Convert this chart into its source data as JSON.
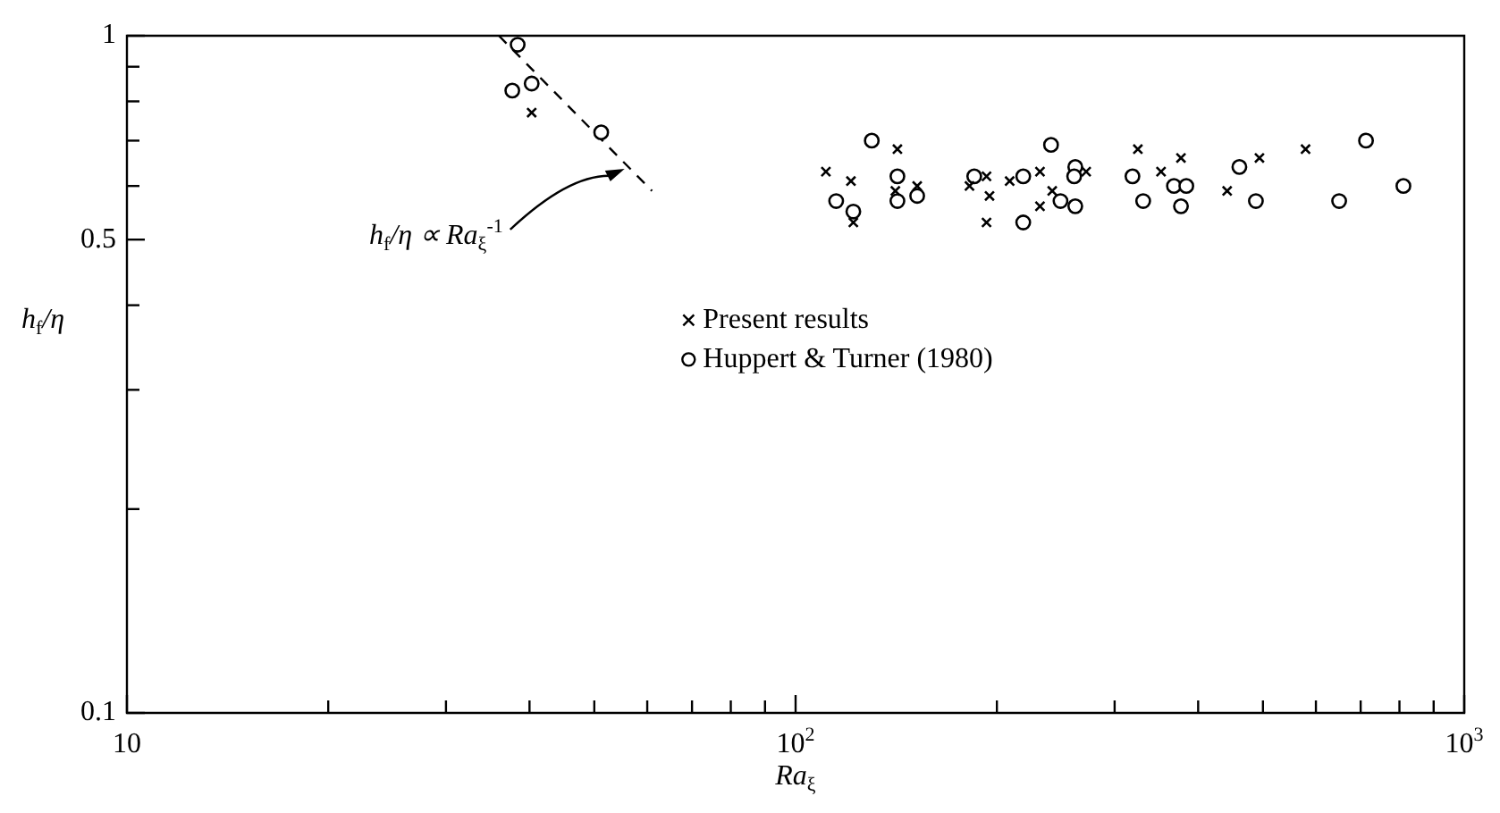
{
  "chart_data": {
    "type": "scatter",
    "xlabel": "Ra$_{ξ}$",
    "ylabel": "h$_{f}$/η",
    "log": "xy",
    "xlim": [
      10,
      1000
    ],
    "ylim": [
      0.1,
      1
    ],
    "xticks": [
      10,
      {
        "value": 20,
        "label": null
      },
      {
        "value": 30,
        "label": null
      },
      {
        "value": 40,
        "label": null
      },
      {
        "value": 50,
        "label": null
      },
      {
        "value": 60,
        "label": null
      },
      {
        "value": 70,
        "label": null
      },
      {
        "value": 80,
        "label": null
      },
      {
        "value": 90,
        "label": null
      },
      {
        "value": 100,
        "label": "10$^{2}$"
      },
      {
        "value": 200,
        "label": null
      },
      {
        "value": 300,
        "label": null
      },
      {
        "value": 400,
        "label": null
      },
      {
        "value": 500,
        "label": null
      },
      {
        "value": 600,
        "label": null
      },
      {
        "value": 700,
        "label": null
      },
      {
        "value": 800,
        "label": null
      },
      {
        "value": 900,
        "label": null
      },
      {
        "value": 1000,
        "label": "10$^{3}$"
      }
    ],
    "yticks": [
      0.1,
      {
        "value": 0.2,
        "label": null
      },
      {
        "value": 0.3,
        "label": null
      },
      {
        "value": 0.4,
        "label": null
      },
      0.5,
      {
        "value": 0.6,
        "label": null
      },
      {
        "value": 0.7,
        "label": null
      },
      {
        "value": 0.8,
        "label": null
      },
      {
        "value": 0.9,
        "label": null
      },
      1
    ],
    "grid": false,
    "legend": "center",
    "series": [
      {
        "name": "Present results",
        "color": "#000000",
        "marker": "cross",
        "x": [
          40.3,
          111,
          121,
          122,
          142,
          141,
          152,
          182,
          193,
          195,
          193,
          209,
          232,
          242,
          232,
          272,
          325,
          352,
          377,
          442,
          494,
          579
        ],
        "values": [
          0.77,
          0.63,
          0.61,
          0.53,
          0.68,
          0.59,
          0.6,
          0.6,
          0.62,
          0.58,
          0.53,
          0.61,
          0.63,
          0.59,
          0.56,
          0.63,
          0.68,
          0.63,
          0.66,
          0.59,
          0.66,
          0.68
        ]
      },
      {
        "name": "Huppert & Turner (1980)",
        "color": "#000000",
        "marker": "circle",
        "x": [
          38.4,
          37.7,
          40.3,
          51.2,
          130,
          115,
          122,
          142,
          142,
          152,
          185,
          219,
          219,
          241,
          249,
          262,
          261,
          262,
          319,
          331,
          368,
          384,
          377,
          461,
          488,
          650,
          713,
          811
        ],
        "values": [
          0.97,
          0.83,
          0.85,
          0.72,
          0.7,
          0.57,
          0.55,
          0.62,
          0.57,
          0.58,
          0.62,
          0.62,
          0.53,
          0.69,
          0.57,
          0.64,
          0.62,
          0.56,
          0.62,
          0.57,
          0.6,
          0.6,
          0.56,
          0.64,
          0.57,
          0.57,
          0.7,
          0.6
        ]
      },
      {
        "type": "line",
        "color": "#000000",
        "marker": "none",
        "line_style": "dashed",
        "x": [
          36,
          61
        ],
        "values": [
          1.0,
          0.59
        ]
      }
    ],
    "annotations": [
      {
        "text": "h$_{f}$/η ∝ Ra$_{ξ}$$^{-1}$",
        "x": 55.5,
        "y": 0.636
      }
    ]
  }
}
